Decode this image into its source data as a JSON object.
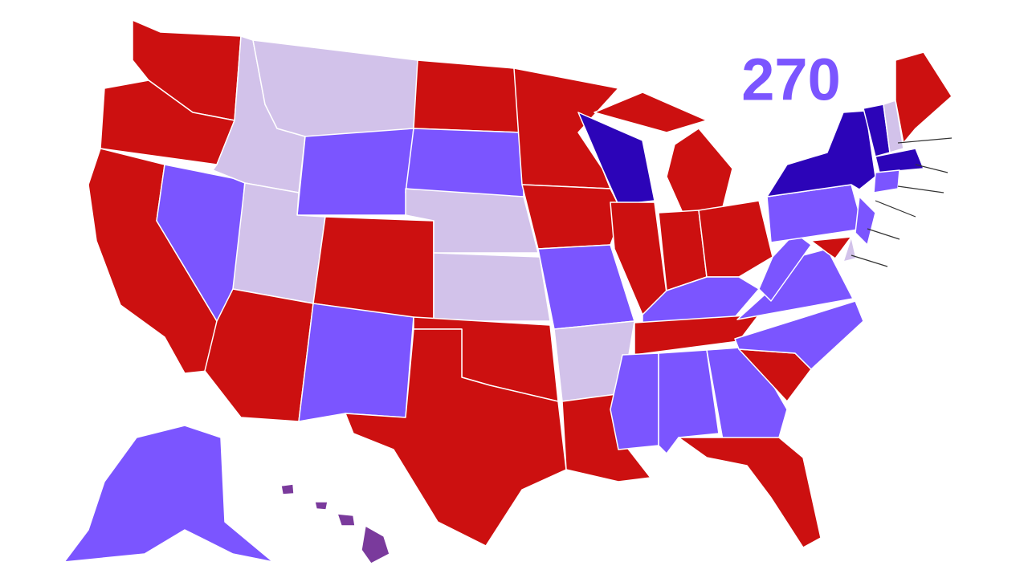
{
  "header": {
    "title": "270"
  }
}
